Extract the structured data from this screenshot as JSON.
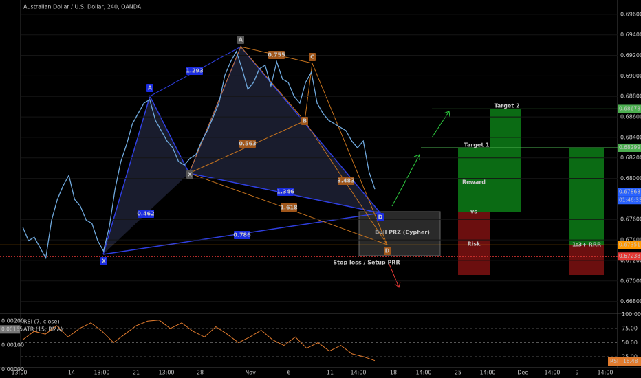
{
  "chart_data": {
    "type": "line",
    "title": "Australian Dollar / U.S. Dollar, 240, OANDA",
    "color": "#6fa8dc",
    "values": [
      0.67526,
      0.67392,
      0.67426,
      0.67325,
      0.67224,
      0.67593,
      0.67795,
      0.67929,
      0.6803,
      0.67795,
      0.67728,
      0.67593,
      0.6756,
      0.67392,
      0.67291,
      0.67526,
      0.67895,
      0.68164,
      0.68332,
      0.68533,
      0.68634,
      0.68734,
      0.68768,
      0.68566,
      0.68466,
      0.68365,
      0.68298,
      0.68164,
      0.6813,
      0.68197,
      0.68231,
      0.68365,
      0.68466,
      0.686,
      0.68734,
      0.69003,
      0.69137,
      0.69238,
      0.6907,
      0.68869,
      0.68936,
      0.6907,
      0.69103,
      0.68902,
      0.69137,
      0.68969,
      0.68936,
      0.68801,
      0.68734,
      0.68936,
      0.69036,
      0.68734,
      0.68634,
      0.68566,
      0.68533,
      0.68499,
      0.68466,
      0.68365,
      0.68298,
      0.68365,
      0.68063,
      0.67895
    ],
    "ylim": [
      0.6669,
      0.6974
    ],
    "yticks": [
      {
        "value": 0.696,
        "label": "0.69600"
      },
      {
        "value": 0.694,
        "label": "0.69400"
      },
      {
        "value": 0.692,
        "label": "0.69200"
      },
      {
        "value": 0.69,
        "label": "0.69000"
      },
      {
        "value": 0.688,
        "label": "0.68800"
      },
      {
        "value": 0.686,
        "label": "0.68600"
      },
      {
        "value": 0.684,
        "label": "0.68400"
      },
      {
        "value": 0.682,
        "label": "0.68200"
      },
      {
        "value": 0.68,
        "label": "0.68000"
      },
      {
        "value": 0.676,
        "label": "0.67600"
      },
      {
        "value": 0.674,
        "label": "0.67400"
      },
      {
        "value": 0.672,
        "label": "0.67200"
      },
      {
        "value": 0.67,
        "label": "0.67000"
      },
      {
        "value": 0.668,
        "label": "0.66800"
      }
    ],
    "xtick_labels": [
      "13:00",
      "14",
      "13:00",
      "21",
      "13:00",
      "28",
      "Nov",
      "6",
      "11",
      "14:00",
      "18",
      "14:00",
      "25",
      "14:00",
      "Dec",
      "14:00",
      "9",
      "14:00"
    ],
    "price_labels": [
      {
        "value": 0.68678,
        "label": "0.68678",
        "color": "#4caf50"
      },
      {
        "value": 0.68299,
        "label": "0.68299",
        "color": "#4caf50"
      },
      {
        "value": 0.67868,
        "label": "0.67868",
        "color": "#2962ff"
      },
      {
        "value": 0.67351,
        "label": "0.67351",
        "color": "#ff9800"
      },
      {
        "value": 0.67238,
        "label": "0.67238",
        "color": "#e53935"
      }
    ],
    "countdown": "01:46:33"
  },
  "pattern": {
    "points": [
      "X",
      "A",
      "X",
      "A",
      "B",
      "C",
      "D",
      "D"
    ],
    "ratios": [
      "1.293",
      "0.462",
      "0.786",
      "1.346",
      "0.755",
      "0.563",
      "1.618",
      "3.483"
    ],
    "prz": "Bull PRZ (Cypher)",
    "stop": "Stop loss / Setup PRR",
    "target2": "Target 2",
    "target1": "Target 1",
    "reward": "Reward",
    "vs": "vs",
    "risk": "Risk",
    "rrr": "1:3+ RRR"
  },
  "indicator_data": {
    "type": "line",
    "legend": [
      "RSI (7, close)",
      "ATR (15, RMA)"
    ],
    "color": "#e07b2e",
    "values": [
      55,
      70,
      65,
      80,
      60,
      75,
      85,
      70,
      50,
      65,
      80,
      88,
      90,
      75,
      85,
      70,
      60,
      78,
      65,
      50,
      60,
      72,
      55,
      45,
      60,
      40,
      50,
      35,
      45,
      30,
      25,
      18
    ],
    "ylim": [
      0,
      100
    ],
    "yticks": [
      {
        "value": 100,
        "label": "100.00"
      },
      {
        "value": 75,
        "label": "75.00"
      },
      {
        "value": 50,
        "label": "50.00"
      },
      {
        "value": 25,
        "label": "25.00"
      }
    ],
    "last_name": "RSI",
    "last": {
      "value": 16.48,
      "label": "16.48"
    },
    "atr_ylim": [
      -6e-05,
      0.00227
    ],
    "atr_ticks": [
      {
        "value": 0.002,
        "label": "0.00200"
      },
      {
        "value": 0.001,
        "label": "0.00100"
      },
      {
        "value": 0,
        "label": "0.00000"
      }
    ],
    "atr_last": {
      "value": 0.00165,
      "label": "0.00165"
    }
  }
}
